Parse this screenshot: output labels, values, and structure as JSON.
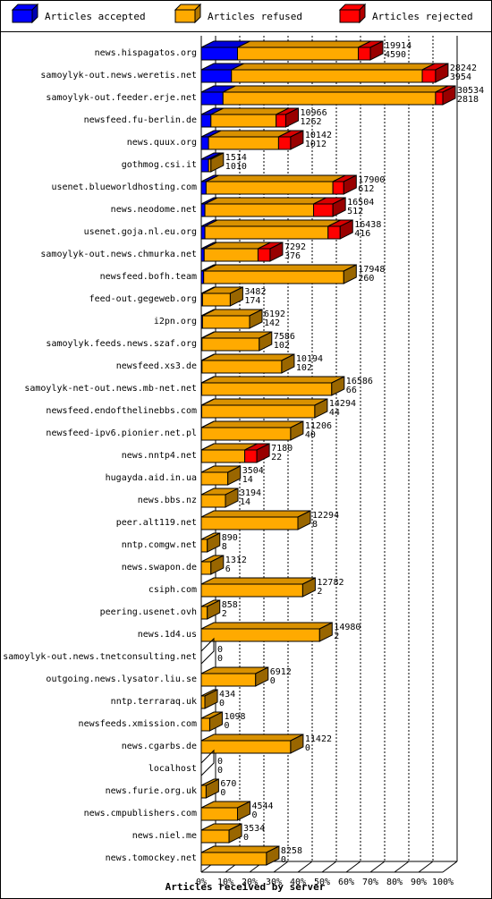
{
  "chart_data": {
    "type": "bar",
    "orientation": "horizontal",
    "stacked": true,
    "xlabel": "Articles received by server",
    "x_ticks": [
      "0%",
      "10%",
      "20%",
      "30%",
      "40%",
      "50%",
      "60%",
      "70%",
      "80%",
      "90%",
      "100%"
    ],
    "xlim": [
      0,
      100
    ],
    "legend_position": "top",
    "series": [
      {
        "name": "Articles accepted",
        "color": "#0000ff"
      },
      {
        "name": "Articles refused",
        "color": "#ffaa00"
      },
      {
        "name": "Articles rejected",
        "color": "#ff0000"
      }
    ],
    "rows": [
      {
        "name": "news.hispagatos.org",
        "label1": "19914",
        "label2": "4590",
        "pct": [
          15,
          50,
          5
        ]
      },
      {
        "name": "samoylyk-out.news.weretis.net",
        "label1": "28242",
        "label2": "3954",
        "pct": [
          12.5,
          79,
          5.5
        ]
      },
      {
        "name": "samoylyk-out.feeder.erje.net",
        "label1": "30534",
        "label2": "2818",
        "pct": [
          9,
          88,
          3
        ]
      },
      {
        "name": "newsfeed.fu-berlin.de",
        "label1": "10966",
        "label2": "1262",
        "pct": [
          4,
          27,
          4
        ]
      },
      {
        "name": "news.quux.org",
        "label1": "10142",
        "label2": "1012",
        "pct": [
          3,
          29,
          5
        ]
      },
      {
        "name": "gothmog.csi.it",
        "label1": "1514",
        "label2": "1010",
        "pct": [
          3,
          1,
          0
        ]
      },
      {
        "name": "usenet.blueworldhosting.com",
        "label1": "17900",
        "label2": "612",
        "pct": [
          2,
          52.5,
          4.5
        ]
      },
      {
        "name": "news.neodome.net",
        "label1": "16504",
        "label2": "512",
        "pct": [
          1.5,
          45,
          8
        ]
      },
      {
        "name": "usenet.goja.nl.eu.org",
        "label1": "16438",
        "label2": "416",
        "pct": [
          1.5,
          51,
          5
        ]
      },
      {
        "name": "samoylyk-out.news.chmurka.net",
        "label1": "7292",
        "label2": "376",
        "pct": [
          1.2,
          22.3,
          5
        ]
      },
      {
        "name": "newsfeed.bofh.team",
        "label1": "17948",
        "label2": "260",
        "pct": [
          1,
          58,
          0
        ]
      },
      {
        "name": "feed-out.gegeweb.org",
        "label1": "3482",
        "label2": "174",
        "pct": [
          0.5,
          11.5,
          0
        ]
      },
      {
        "name": "i2pn.org",
        "label1": "6192",
        "label2": "142",
        "pct": [
          0.5,
          19.5,
          0
        ]
      },
      {
        "name": "samoylyk.feeds.news.szaf.org",
        "label1": "7586",
        "label2": "102",
        "pct": [
          0.3,
          23.7,
          0
        ]
      },
      {
        "name": "newsfeed.xs3.de",
        "label1": "10194",
        "label2": "102",
        "pct": [
          0.3,
          33,
          0
        ]
      },
      {
        "name": "samoylyk-net-out.news.mb-net.net",
        "label1": "16586",
        "label2": "66",
        "pct": [
          0.2,
          53.8,
          0
        ]
      },
      {
        "name": "newsfeed.endofthelinebbs.com",
        "label1": "14294",
        "label2": "44",
        "pct": [
          0.2,
          46.8,
          0
        ]
      },
      {
        "name": "newsfeed-ipv6.pionier.net.pl",
        "label1": "11206",
        "label2": "40",
        "pct": [
          0.1,
          36.9,
          0
        ]
      },
      {
        "name": "news.nntp4.net",
        "label1": "7180",
        "label2": "22",
        "pct": [
          0.1,
          17.9,
          5
        ]
      },
      {
        "name": "hugayda.aid.in.ua",
        "label1": "3504",
        "label2": "14",
        "pct": [
          0,
          11,
          0
        ]
      },
      {
        "name": "news.bbs.nz",
        "label1": "3194",
        "label2": "14",
        "pct": [
          0,
          10,
          0
        ]
      },
      {
        "name": "peer.alt119.net",
        "label1": "12294",
        "label2": "8",
        "pct": [
          0,
          40,
          0
        ]
      },
      {
        "name": "nntp.comgw.net",
        "label1": "890",
        "label2": "8",
        "pct": [
          0,
          2.5,
          0
        ]
      },
      {
        "name": "news.swapon.de",
        "label1": "1312",
        "label2": "6",
        "pct": [
          0,
          4,
          0
        ]
      },
      {
        "name": "csiph.com",
        "label1": "12782",
        "label2": "2",
        "pct": [
          0,
          42,
          0
        ]
      },
      {
        "name": "peering.usenet.ovh",
        "label1": "858",
        "label2": "2",
        "pct": [
          0,
          2.5,
          0
        ]
      },
      {
        "name": "news.1d4.us",
        "label1": "14980",
        "label2": "2",
        "pct": [
          0,
          49,
          0
        ]
      },
      {
        "name": "samoylyk-out.news.tnetconsulting.net",
        "label1": "0",
        "label2": "0",
        "pct": [
          0,
          0,
          0
        ]
      },
      {
        "name": "outgoing.news.lysator.liu.se",
        "label1": "6912",
        "label2": "0",
        "pct": [
          0,
          22.5,
          0
        ]
      },
      {
        "name": "nntp.terraraq.uk",
        "label1": "434",
        "label2": "0",
        "pct": [
          0,
          1.5,
          0
        ]
      },
      {
        "name": "newsfeeds.xmission.com",
        "label1": "1098",
        "label2": "0",
        "pct": [
          0,
          3.5,
          0
        ]
      },
      {
        "name": "news.cgarbs.de",
        "label1": "11422",
        "label2": "0",
        "pct": [
          0,
          37,
          0
        ]
      },
      {
        "name": "localhost",
        "label1": "0",
        "label2": "0",
        "pct": [
          0,
          0,
          0
        ]
      },
      {
        "name": "news.furie.org.uk",
        "label1": "670",
        "label2": "0",
        "pct": [
          0,
          2,
          0
        ]
      },
      {
        "name": "news.cmpublishers.com",
        "label1": "4544",
        "label2": "0",
        "pct": [
          0,
          15,
          0
        ]
      },
      {
        "name": "news.niel.me",
        "label1": "3534",
        "label2": "0",
        "pct": [
          0,
          11.5,
          0
        ]
      },
      {
        "name": "news.tomockey.net",
        "label1": "8258",
        "label2": "0",
        "pct": [
          0,
          27,
          0
        ]
      }
    ]
  }
}
